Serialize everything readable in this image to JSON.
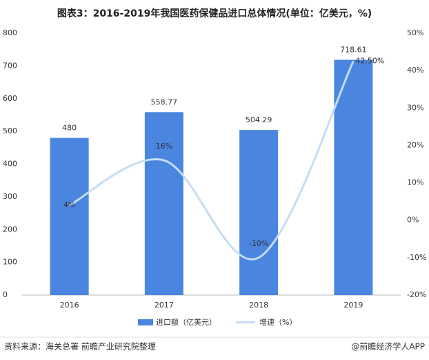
{
  "chart_data": {
    "type": "combo",
    "title": "图表3：2016-2019年我国医药保健品进口总体情况(单位：亿美元，%)",
    "categories": [
      "2016",
      "2017",
      "2018",
      "2019"
    ],
    "series": [
      {
        "name": "进口额（亿美元）",
        "type": "bar",
        "color": "#4a86e0",
        "values": [
          480,
          558.77,
          504.29,
          718.61
        ]
      },
      {
        "name": "增速（%）",
        "type": "line",
        "axis": "y2",
        "color": "#c6dcf4",
        "values": [
          4,
          16,
          -10,
          42.5
        ],
        "value_labels": [
          "4%",
          "16%",
          "-10%",
          "42.50%"
        ]
      }
    ],
    "ylim": [
      0,
      800
    ],
    "yticks": [
      0,
      100,
      200,
      300,
      400,
      500,
      600,
      700,
      800
    ],
    "y2lim": [
      -20,
      50
    ],
    "y2ticks": [
      {
        "value": -20,
        "label": "-20%"
      },
      {
        "value": -10,
        "label": "-10%"
      },
      {
        "value": 0,
        "label": "0%"
      },
      {
        "value": 10,
        "label": "10%"
      },
      {
        "value": 20,
        "label": "20%"
      },
      {
        "value": 30,
        "label": "30%"
      },
      {
        "value": 40,
        "label": "40%"
      },
      {
        "value": 50,
        "label": "50%"
      }
    ],
    "source": "资料来源：海关总署 前瞻产业研究院整理",
    "credit": "@前瞻经济学人APP"
  }
}
